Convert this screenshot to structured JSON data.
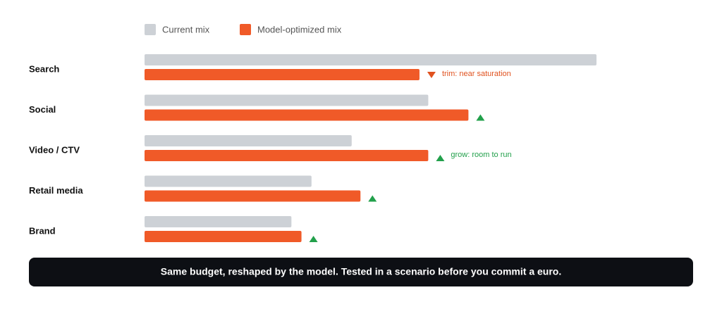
{
  "chart_data": {
    "type": "bar",
    "categories": [
      "Search",
      "Social",
      "Video / CTV",
      "Retail media",
      "Brand"
    ],
    "series": [
      {
        "name": "Current mix",
        "color": "#cdd1d6",
        "values": [
          36,
          22.6,
          16.5,
          13.3,
          11.7
        ]
      },
      {
        "name": "Model-optimized mix",
        "color": "#f05a28",
        "values": [
          21.9,
          25.8,
          22.6,
          17.2,
          12.5
        ]
      }
    ],
    "xlim": [
      0,
      36
    ],
    "annotations": [
      "trim: near saturation",
      null,
      "grow: room to run",
      null,
      null
    ],
    "up_color": "#22a04b",
    "down_color": "#e0521f",
    "caption": "Same budget, reshaped by the model. Tested in a scenario before you commit a euro."
  }
}
